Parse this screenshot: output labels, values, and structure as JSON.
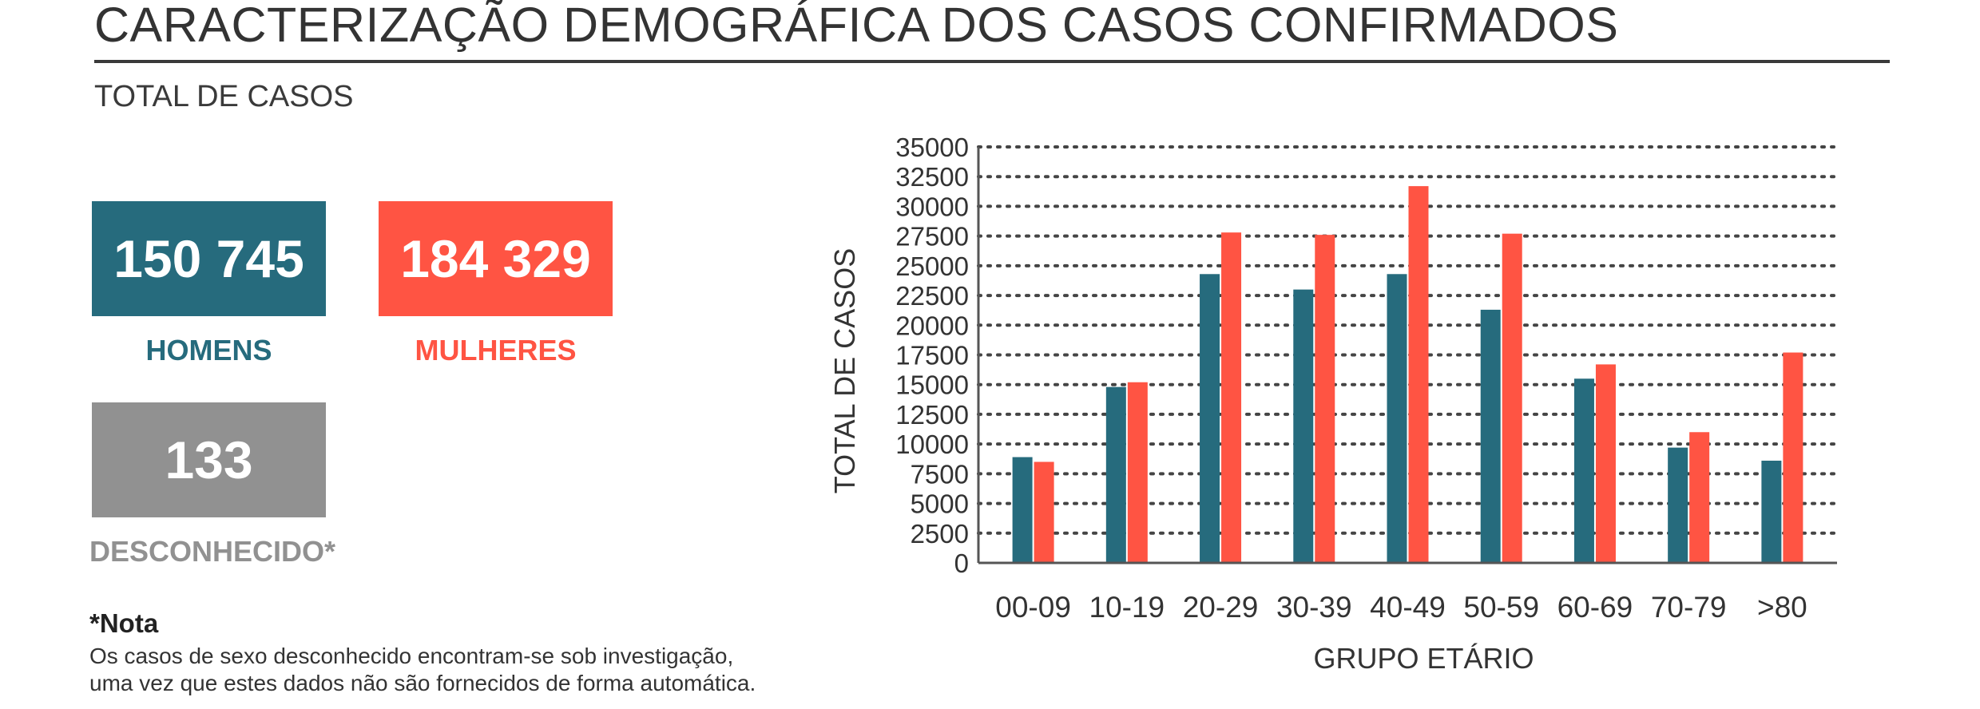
{
  "header": {
    "title": "CARACTERIZAÇÃO DEMOGRÁFICA DOS CASOS CONFIRMADOS",
    "subtitle": "TOTAL DE CASOS"
  },
  "totals": {
    "men": {
      "value": "150 745",
      "label": "HOMENS",
      "color": "#266b7d"
    },
    "women": {
      "value": "184 329",
      "label": "MULHERES",
      "color": "#ff5443"
    },
    "unknown": {
      "value": "133",
      "label": "DESCONHECIDO*",
      "color": "#919191"
    }
  },
  "note": {
    "title": "*Nota",
    "line1": "Os casos de sexo desconhecido encontram-se sob investigação,",
    "line2": "uma vez que estes dados não são fornecidos de forma automática."
  },
  "chart_data": {
    "type": "bar",
    "categories": [
      "00-09",
      "10-19",
      "20-29",
      "30-39",
      "40-49",
      "50-59",
      "60-69",
      "70-79",
      ">80"
    ],
    "series": [
      {
        "name": "HOMENS",
        "color": "#266b7d",
        "values": [
          8900,
          14800,
          24300,
          23000,
          24300,
          21300,
          15500,
          9700,
          8600
        ]
      },
      {
        "name": "MULHERES",
        "color": "#ff5443",
        "values": [
          8500,
          15200,
          27800,
          27600,
          31700,
          27700,
          16700,
          11000,
          17700
        ]
      }
    ],
    "xlabel": "GRUPO ETÁRIO",
    "ylabel": "TOTAL DE CASOS",
    "ylim": [
      0,
      35000
    ],
    "yticks": [
      0,
      2500,
      5000,
      7500,
      10000,
      12500,
      15000,
      17500,
      20000,
      22500,
      25000,
      27500,
      30000,
      32500,
      35000
    ],
    "grid": true,
    "legend": "none"
  }
}
